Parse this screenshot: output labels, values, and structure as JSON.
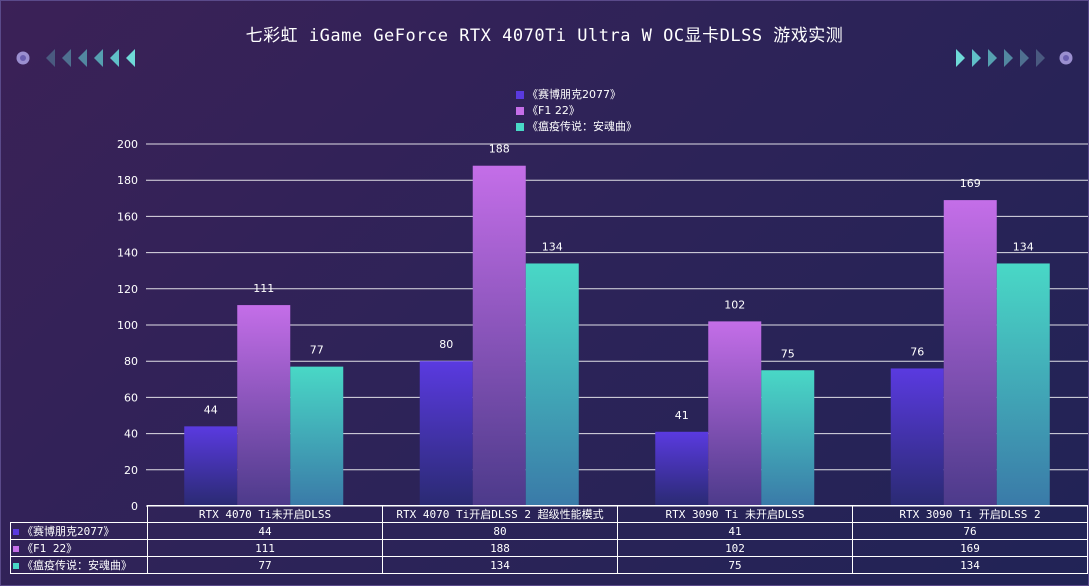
{
  "title": "七彩虹 iGame GeForce RTX 4070Ti  Ultra W OC显卡DLSS 游戏实测",
  "colors": {
    "series": [
      "#5a3ae0",
      "#c46ee8",
      "#49d8c6"
    ],
    "series_dark": [
      "#2a2a72",
      "#4c3a8a",
      "#3a7aa8"
    ]
  },
  "chart_data": {
    "type": "bar",
    "title": "七彩虹 iGame GeForce RTX 4070Ti  Ultra W OC显卡DLSS 游戏实测",
    "categories": [
      "RTX 4070 Ti未开启DLSS",
      "RTX 4070 Ti开启DLSS 2 超级性能模式",
      "RTX 3090 Ti 未开启DLSS",
      "RTX 3090 Ti 开启DLSS 2"
    ],
    "series": [
      {
        "name": "《赛博朋克2077》",
        "values": [
          44,
          80,
          41,
          76
        ]
      },
      {
        "name": "《F1 22》",
        "values": [
          111,
          188,
          102,
          169
        ]
      },
      {
        "name": "《瘟疫传说：安魂曲》",
        "values": [
          77,
          134,
          75,
          134
        ]
      }
    ],
    "ylim": [
      0,
      200
    ],
    "yticks": [
      0,
      20,
      40,
      60,
      80,
      100,
      120,
      140,
      160,
      180,
      200
    ],
    "xlabel": "",
    "ylabel": "",
    "grid": true,
    "legend": "top-center",
    "data_table": true
  }
}
